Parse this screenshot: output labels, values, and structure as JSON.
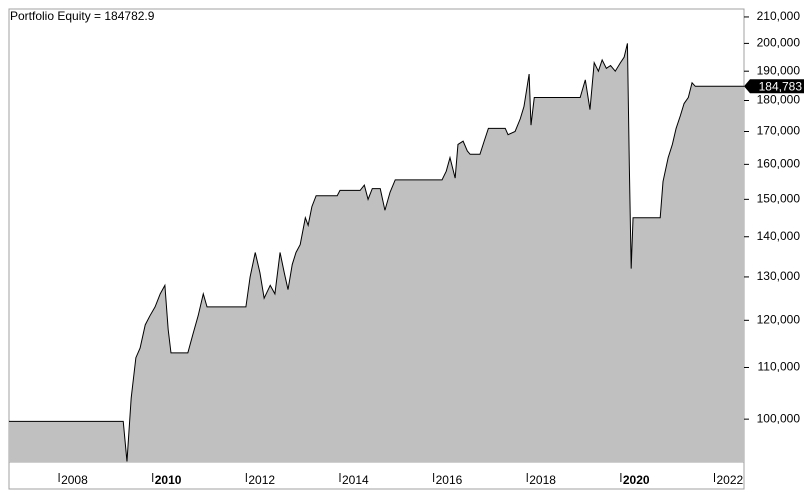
{
  "chart_data": {
    "type": "area",
    "title": "Portfolio Equity = 184782.9",
    "log_scale": true,
    "color": "#c0c0c0",
    "line_color": "#000000",
    "x": [
      2006.93,
      2009.37,
      2009.45,
      2009.54,
      2009.64,
      2009.73,
      2009.84,
      2009.94,
      2010.05,
      2010.16,
      2010.26,
      2010.33,
      2010.39,
      2010.75,
      2010.86,
      2010.97,
      2011.08,
      2011.16,
      2011.22,
      2011.99,
      2012.08,
      2012.19,
      2012.29,
      2012.38,
      2012.51,
      2012.61,
      2012.72,
      2012.81,
      2012.89,
      2012.98,
      2013.06,
      2013.15,
      2013.26,
      2013.32,
      2013.4,
      2013.49,
      2013.94,
      2014.0,
      2014.43,
      2014.52,
      2014.6,
      2014.69,
      2014.86,
      2014.96,
      2015.07,
      2015.18,
      2016.18,
      2016.27,
      2016.35,
      2016.46,
      2016.52,
      2016.63,
      2016.72,
      2016.78,
      2016.99,
      2017.08,
      2017.17,
      2017.53,
      2017.59,
      2017.74,
      2017.85,
      2017.93,
      2018.04,
      2018.08,
      2018.15,
      2019.13,
      2019.24,
      2019.34,
      2019.43,
      2019.52,
      2019.6,
      2019.69,
      2019.78,
      2019.88,
      2019.99,
      2020.07,
      2020.14,
      2020.18,
      2020.22,
      2020.26,
      2020.84,
      2020.9,
      2021.01,
      2021.1,
      2021.18,
      2021.27,
      2021.35,
      2021.44,
      2021.52,
      2021.59,
      2022.63
    ],
    "values": [
      99600,
      99600,
      92500,
      104000,
      112000,
      114000,
      119000,
      121000,
      123000,
      126000,
      128000,
      118000,
      113000,
      113000,
      117000,
      121000,
      126000,
      123000,
      123000,
      123000,
      130000,
      136000,
      131000,
      125000,
      128000,
      126000,
      136000,
      131000,
      127000,
      133000,
      136000,
      138000,
      145000,
      143000,
      148000,
      151000,
      151000,
      152500,
      152500,
      154000,
      150000,
      153000,
      153000,
      147000,
      152000,
      155500,
      155500,
      158000,
      162000,
      156000,
      166000,
      167000,
      164000,
      163000,
      163000,
      167000,
      171000,
      171000,
      169000,
      170000,
      174000,
      178000,
      189000,
      172000,
      181000,
      181000,
      187000,
      177000,
      193000,
      190000,
      194000,
      191000,
      192000,
      190000,
      193000,
      195000,
      200000,
      160000,
      132000,
      145000,
      145000,
      155000,
      162000,
      166000,
      171000,
      175000,
      179000,
      181000,
      186000,
      184782.9,
      184782.9
    ],
    "end_marker": {
      "value": 184782.9,
      "label": "184,783"
    },
    "xlim": [
      2006.93,
      2022.63
    ],
    "ylim": [
      92400,
      213100
    ],
    "xticks": [
      2008,
      2010,
      2012,
      2014,
      2016,
      2018,
      2020,
      2022
    ],
    "xticks_bold": [
      2010,
      2020
    ],
    "yticks": [
      {
        "value": 100000,
        "label": "100,000"
      },
      {
        "value": 110000,
        "label": "110,000"
      },
      {
        "value": 120000,
        "label": "120,000"
      },
      {
        "value": 130000,
        "label": "130,000"
      },
      {
        "value": 140000,
        "label": "140,000"
      },
      {
        "value": 150000,
        "label": "150,000"
      },
      {
        "value": 160000,
        "label": "160,000"
      },
      {
        "value": 170000,
        "label": "170,000"
      },
      {
        "value": 180000,
        "label": "180,000"
      },
      {
        "value": 190000,
        "label": "190,000"
      },
      {
        "value": 200000,
        "label": "200,000"
      },
      {
        "value": 210000,
        "label": "210,000"
      }
    ]
  }
}
